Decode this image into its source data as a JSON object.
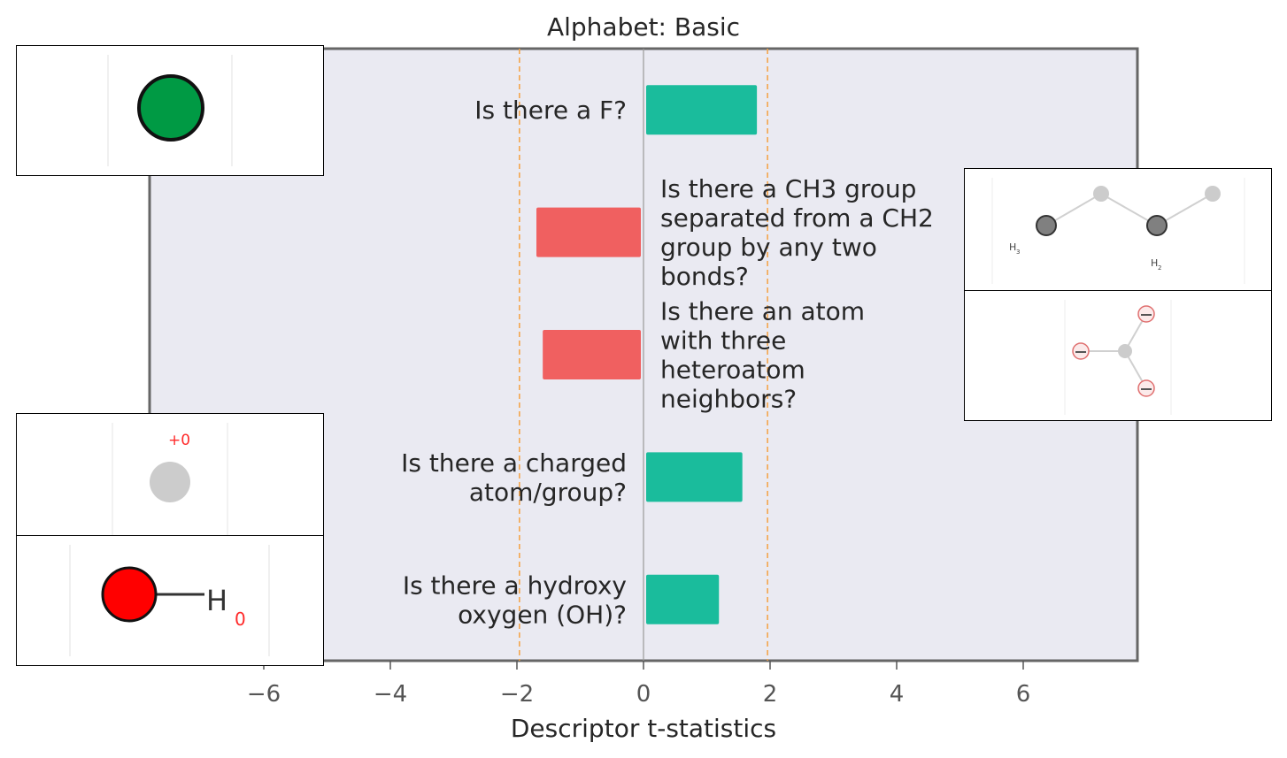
{
  "chart_data": {
    "type": "bar",
    "orientation": "horizontal",
    "title": "Alphabet: Basic",
    "xlabel": "Descriptor t-statistics",
    "xlim": [
      -7.5,
      7.8
    ],
    "xticks": [
      -6,
      -4,
      -2,
      0,
      2,
      4,
      6
    ],
    "xtick_labels": [
      "−6",
      "−4",
      "−2",
      "0",
      "2",
      "4",
      "6"
    ],
    "significance_lines": [
      -1.96,
      1.96
    ],
    "grid": false,
    "bars": [
      {
        "label": "Is there a F?",
        "value": 1.75,
        "color": "#1abc9c"
      },
      {
        "label": "Is there a CH3 group separated from a CH2 group by any two bonds?",
        "value": -1.65,
        "color": "#f06060"
      },
      {
        "label": "Is there an atom with three heteroatom neighbors?",
        "value": -1.55,
        "color": "#f06060"
      },
      {
        "label": "Is there a charged atom/group?",
        "value": 1.52,
        "color": "#1abc9c"
      },
      {
        "label": "Is there a hydroxy oxygen (OH)?",
        "value": 1.15,
        "color": "#1abc9c"
      }
    ],
    "label_lines": [
      [
        "Is there a F?"
      ],
      [
        "Is there a CH3 group",
        "separated from a CH2",
        "group by any two",
        "bonds?"
      ],
      [
        "Is there an atom",
        "with three",
        "heteroatom",
        "neighbors?"
      ],
      [
        "Is there a charged",
        "atom/group?"
      ],
      [
        "Is there a hydroxy",
        "oxygen (OH)?"
      ]
    ]
  },
  "molecules": {
    "ch3_labels": [
      "H",
      "H"
    ],
    "ch3_subscripts": [
      "3",
      "2"
    ],
    "charge_label": "+0",
    "oh_atom": "H",
    "oh_subscript": "0"
  },
  "colors": {
    "positive": "#1abc9c",
    "negative": "#f06060",
    "plot_bg": "#eaeaf2",
    "significance": "#f5a142",
    "fluorine": "#009a44",
    "oxygen": "#ff0000"
  }
}
